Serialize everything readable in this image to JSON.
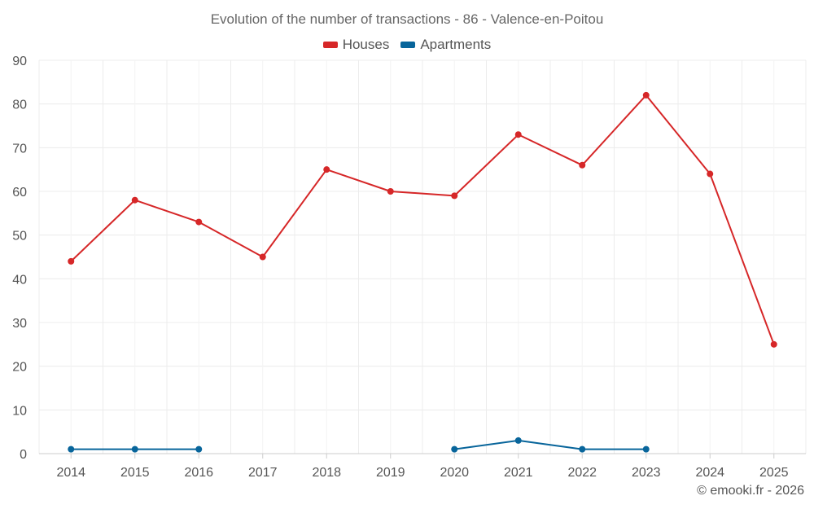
{
  "chart_data": {
    "type": "line",
    "title": "Evolution of the number of transactions - 86 - Valence-en-Poitou",
    "xlabel": "",
    "ylabel": "",
    "ylim": [
      0,
      90
    ],
    "yticks": [
      0,
      10,
      20,
      30,
      40,
      50,
      60,
      70,
      80,
      90
    ],
    "categories": [
      "2014",
      "2015",
      "2016",
      "2017",
      "2018",
      "2019",
      "2020",
      "2021",
      "2022",
      "2023",
      "2024",
      "2025"
    ],
    "grid": true,
    "legend_position": "top-center",
    "series": [
      {
        "name": "Houses",
        "color": "#d62728",
        "values": [
          44,
          58,
          53,
          45,
          65,
          60,
          59,
          73,
          66,
          82,
          64,
          25
        ]
      },
      {
        "name": "Apartments",
        "color": "#08659b",
        "values": [
          1,
          1,
          1,
          null,
          null,
          null,
          1,
          3,
          1,
          1,
          null,
          null
        ]
      }
    ]
  },
  "credit": "© emooki.fr - 2026"
}
